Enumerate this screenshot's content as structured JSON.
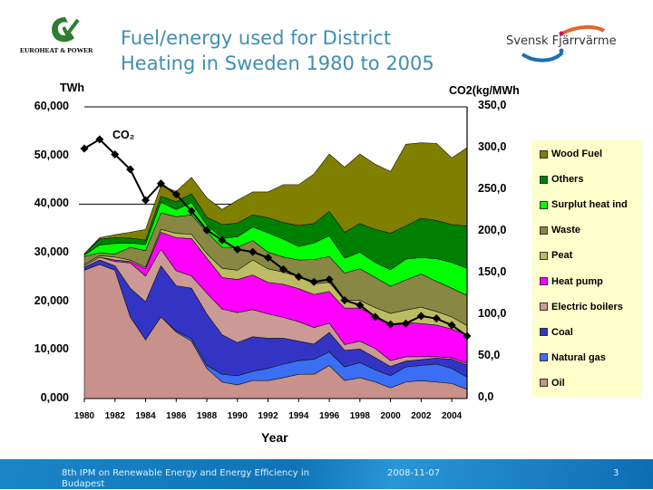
{
  "slide": {
    "title": "Fuel/energy used for District Heating in Sweden 1980 to 2005",
    "logo_left_text": "EUROHEAT & POWER",
    "logo_right_text": "Svensk Fjärrvärme",
    "footer": {
      "event": "8th IPM on Renewable Energy and Energy Efficiency in Budapest",
      "date": "2008-11-07",
      "page": "3"
    }
  },
  "chart_data": {
    "type": "area",
    "stacked": true,
    "xlabel": "Year",
    "ylabel": "TWh",
    "y2label": "CO2(kg/MWh",
    "co2_annotation": "CO₂",
    "ylim": [
      0,
      60
    ],
    "y2lim": [
      0,
      350
    ],
    "yticks": [
      "0,000",
      "10,000",
      "20,000",
      "30,000",
      "40,000",
      "50,000",
      "60,000"
    ],
    "y2ticks": [
      "0,0",
      "50,0",
      "100,0",
      "150,0",
      "200,0",
      "250,0",
      "300,0",
      "350,0"
    ],
    "xtick_labels": [
      "1980",
      "1982",
      "1984",
      "1986",
      "1988",
      "1990",
      "1992",
      "1994",
      "1996",
      "1998",
      "2000",
      "2002",
      "2004"
    ],
    "legend_position": "right",
    "x": [
      1980,
      1981,
      1982,
      1983,
      1984,
      1985,
      1986,
      1987,
      1988,
      1989,
      1990,
      1991,
      1992,
      1993,
      1994,
      1995,
      1996,
      1997,
      1998,
      1999,
      2000,
      2001,
      2002,
      2003,
      2004,
      2005
    ],
    "series": [
      {
        "name": "Oil",
        "color": "#c8918c",
        "values": [
          26.4,
          27.6,
          26.4,
          16.8,
          12.1,
          16.8,
          13.7,
          11.8,
          6.2,
          3.4,
          2.8,
          3.7,
          3.7,
          4.3,
          5.0,
          5.0,
          6.8,
          3.7,
          4.3,
          3.4,
          2.2,
          3.4,
          3.7,
          3.4,
          3.1,
          1.9
        ]
      },
      {
        "name": "Natural gas",
        "color": "#3a6ff5",
        "values": [
          0,
          0,
          0,
          0,
          0,
          0,
          0.2,
          0.5,
          0.6,
          1.6,
          1.9,
          1.9,
          2.5,
          2.8,
          2.8,
          3.1,
          2.8,
          2.8,
          3.1,
          2.5,
          2.5,
          3.1,
          3.1,
          3.7,
          3.1,
          2.5
        ]
      },
      {
        "name": "Coal",
        "color": "#3434c4",
        "values": [
          0.6,
          0.9,
          0.9,
          5.9,
          7.8,
          10.5,
          9.3,
          10.4,
          10.6,
          8.1,
          6.8,
          7.1,
          6.2,
          5.3,
          4.0,
          3.1,
          4.0,
          3.4,
          2.8,
          2.5,
          1.9,
          1.2,
          1.2,
          1.2,
          1.9,
          2.5
        ]
      },
      {
        "name": "Electric boilers",
        "color": "#cc9a96",
        "values": [
          0.3,
          0.6,
          0.9,
          5.2,
          5.3,
          3.4,
          3.1,
          2.5,
          4.3,
          5.3,
          6.2,
          5.6,
          5.0,
          4.3,
          4.0,
          3.4,
          1.9,
          1.2,
          1.6,
          1.9,
          1.2,
          0.9,
          0.6,
          0.3,
          0.3,
          0.3
        ]
      },
      {
        "name": "Heat pump",
        "color": "#ff00ff",
        "values": [
          0,
          0,
          0.3,
          0.3,
          1.5,
          3.5,
          6.8,
          7.7,
          7.2,
          6.5,
          6.8,
          7.1,
          6.5,
          6.8,
          6.8,
          6.8,
          6.5,
          7.5,
          6.8,
          6.8,
          7.5,
          7.1,
          6.8,
          6.5,
          5.9,
          5.9
        ]
      },
      {
        "name": "Peat",
        "color": "#bcbc64",
        "values": [
          0.3,
          0.3,
          0.6,
          0.3,
          0.3,
          0.6,
          0.9,
          0.9,
          0.9,
          1.9,
          1.9,
          3.1,
          2.8,
          2.5,
          2.5,
          2.2,
          1.9,
          1.6,
          1.6,
          1.6,
          2.2,
          2.5,
          3.4,
          2.8,
          2.5,
          1.9
        ]
      },
      {
        "name": "Waste",
        "color": "#888844",
        "values": [
          1.6,
          0.6,
          0.6,
          2.6,
          3.4,
          3.4,
          3.4,
          4.0,
          4.4,
          4.3,
          4.7,
          4.0,
          3.4,
          3.1,
          3.4,
          5.0,
          5.3,
          5.6,
          6.5,
          6.2,
          5.6,
          6.2,
          6.8,
          6.2,
          5.9,
          6.2
        ]
      },
      {
        "name": "Surplut heat ind",
        "color": "#00ff00",
        "values": [
          0.3,
          1.6,
          2.2,
          0.9,
          1.3,
          2.2,
          1.5,
          2.5,
          1.5,
          1.9,
          2.2,
          2.8,
          4.0,
          3.7,
          2.8,
          3.4,
          4.3,
          3.1,
          3.4,
          3.1,
          3.4,
          4.3,
          3.4,
          4.7,
          5.3,
          5.6
        ]
      },
      {
        "name": "Others",
        "color": "#008000",
        "values": [
          0.3,
          1.2,
          1.2,
          1.0,
          0.9,
          1.2,
          1.6,
          1.8,
          1.6,
          2.8,
          2.8,
          2.5,
          3.1,
          3.4,
          4.3,
          4.0,
          5.0,
          5.3,
          5.9,
          6.8,
          7.5,
          6.8,
          8.1,
          7.8,
          7.8,
          8.7
        ]
      },
      {
        "name": "Wood Fuel",
        "color": "#808000",
        "values": [
          0,
          0.3,
          0.6,
          1.2,
          2.2,
          2.2,
          2.1,
          3.4,
          4.0,
          3.1,
          4.7,
          4.7,
          5.3,
          7.8,
          8.4,
          10.2,
          11.8,
          13.4,
          14.3,
          13.4,
          12.7,
          16.8,
          15.5,
          15.9,
          13.7,
          16.1
        ]
      }
    ],
    "co2_line": {
      "axis": "right",
      "color": "#000000",
      "values": [
        300,
        311,
        293,
        275,
        238,
        258,
        245,
        225,
        202,
        190,
        179,
        176,
        169,
        155,
        146,
        140,
        143,
        118,
        112,
        98,
        89,
        90,
        99,
        96,
        88,
        75
      ]
    }
  }
}
